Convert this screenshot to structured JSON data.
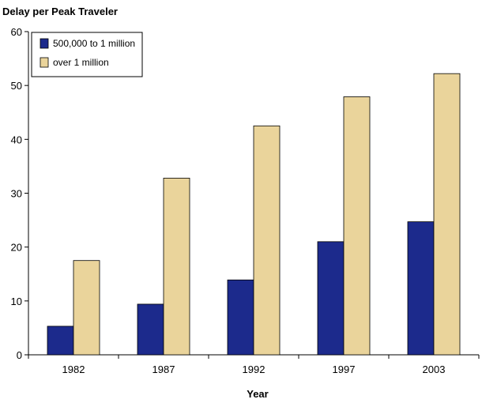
{
  "chart_data": {
    "type": "bar",
    "title": "",
    "ylabel": "Delay per Peak Traveler",
    "xlabel": "Year",
    "categories": [
      "1982",
      "1987",
      "1992",
      "1997",
      "2003"
    ],
    "series": [
      {
        "name": "500,000 to 1 million",
        "values": [
          5.3,
          9.4,
          13.9,
          21.0,
          24.7
        ],
        "color": "#1c2a8c"
      },
      {
        "name": "over 1 million",
        "values": [
          17.5,
          32.8,
          42.5,
          47.9,
          52.2
        ],
        "color": "#ead49b"
      }
    ],
    "ylim": [
      0,
      60
    ],
    "yticks": [
      "0",
      "10",
      "20",
      "30",
      "40",
      "50",
      "60"
    ],
    "grid": false,
    "legend_position": "top-left"
  }
}
